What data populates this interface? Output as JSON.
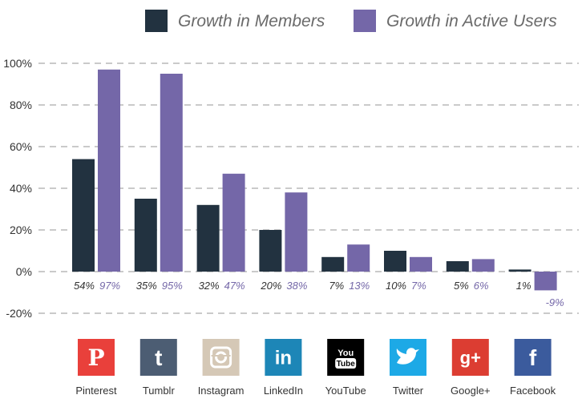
{
  "chart_data": {
    "type": "bar",
    "title": "",
    "xlabel": "",
    "ylabel": "",
    "ylim": [
      -20,
      100
    ],
    "yticks": [
      "-20%",
      "0%",
      "20%",
      "40%",
      "60%",
      "80%",
      "100%"
    ],
    "ytick_values": [
      -20,
      0,
      20,
      40,
      60,
      80,
      100
    ],
    "grid": true,
    "legend_position": "top",
    "categories": [
      "Pinterest",
      "Tumblr",
      "Instagram",
      "LinkedIn",
      "YouTube",
      "Twitter",
      "Google+",
      "Facebook"
    ],
    "series": [
      {
        "name": "Growth in Members",
        "color": "#223240",
        "label_color": "#333333",
        "values": [
          54,
          35,
          32,
          20,
          7,
          10,
          5,
          1
        ],
        "labels": [
          "54%",
          "35%",
          "32%",
          "20%",
          "7%",
          "10%",
          "5%",
          "1%"
        ]
      },
      {
        "name": "Growth in Active Users",
        "color": "#7467a8",
        "label_color": "#7467a8",
        "values": [
          97,
          95,
          47,
          38,
          13,
          7,
          6,
          -9
        ],
        "labels": [
          "97%",
          "95%",
          "47%",
          "38%",
          "13%",
          "7%",
          "6%",
          "-9%"
        ]
      }
    ]
  },
  "platform_icons": [
    {
      "name": "pinterest-icon",
      "glyph": "P",
      "bg": "#e9403b",
      "fg": "#ffffff"
    },
    {
      "name": "tumblr-icon",
      "glyph": "t",
      "bg": "#4c5d73",
      "fg": "#ffffff"
    },
    {
      "name": "instagram-icon",
      "glyph": "",
      "bg": "#d5c8b6",
      "fg": "#ffffff"
    },
    {
      "name": "linkedin-icon",
      "glyph": "in",
      "bg": "#1d86b7",
      "fg": "#ffffff"
    },
    {
      "name": "youtube-icon",
      "glyph": "You",
      "glyph2": "Tube",
      "bg": "#000000",
      "fg": "#ffffff"
    },
    {
      "name": "twitter-icon",
      "glyph": "",
      "bg": "#1da9e6",
      "fg": "#ffffff"
    },
    {
      "name": "google-plus-icon",
      "glyph": "g+",
      "bg": "#dc3d32",
      "fg": "#ffffff"
    },
    {
      "name": "facebook-icon",
      "glyph": "f",
      "bg": "#3b5b9d",
      "fg": "#ffffff"
    }
  ]
}
